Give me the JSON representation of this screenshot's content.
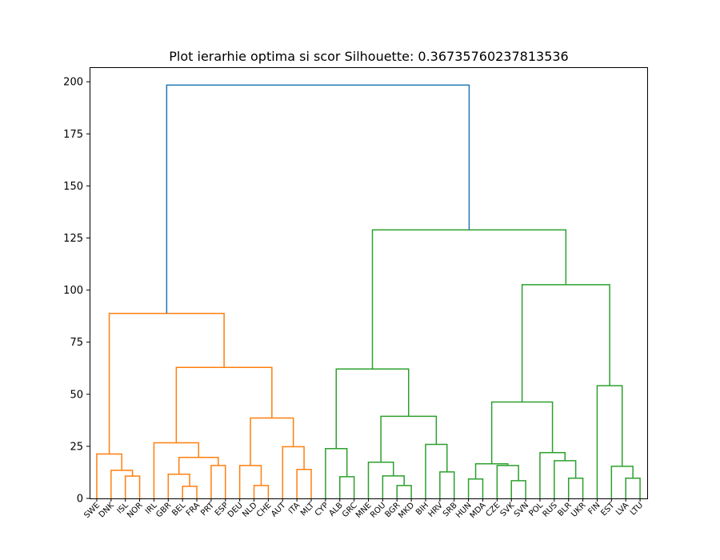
{
  "chart_data": {
    "type": "dendrogram",
    "title": "Plot ierarhie optima si scor Silhouette: 0.36735760237813536",
    "xlabel": "",
    "ylabel": "",
    "ylim": [
      0,
      207
    ],
    "yticks": [
      0,
      25,
      50,
      75,
      100,
      125,
      150,
      175,
      200
    ],
    "grid": false,
    "colors": {
      "cluster_1": "#ff7f0e",
      "cluster_2": "#2ca02c",
      "above_threshold": "#1f77b4"
    },
    "leaves": [
      "SWE",
      "DNK",
      "ISL",
      "NOR",
      "IRL",
      "GBR",
      "BEL",
      "FRA",
      "PRT",
      "ESP",
      "DEU",
      "NLD",
      "CHE",
      "AUT",
      "ITA",
      "MLT",
      "CYP",
      "ALB",
      "GRC",
      "MNE",
      "ROU",
      "BGR",
      "MKD",
      "BIH",
      "HRV",
      "SRB",
      "HUN",
      "MDA",
      "CZE",
      "SVK",
      "SVN",
      "POL",
      "RUS",
      "BLR",
      "UKR",
      "FIN",
      "EST",
      "LVA",
      "LTU"
    ],
    "merges": [
      {
        "id": "m01",
        "left": "ISL",
        "right": "NOR",
        "height": 10.7,
        "color": "cluster_1"
      },
      {
        "id": "m02",
        "left": "DNK",
        "right": "m01",
        "height": 13.5,
        "color": "cluster_1"
      },
      {
        "id": "m03",
        "left": "SWE",
        "right": "m02",
        "height": 21.3,
        "color": "cluster_1"
      },
      {
        "id": "m04",
        "left": "BEL",
        "right": "FRA",
        "height": 5.8,
        "color": "cluster_1"
      },
      {
        "id": "m05",
        "left": "GBR",
        "right": "m04",
        "height": 11.6,
        "color": "cluster_1"
      },
      {
        "id": "m06",
        "left": "PRT",
        "right": "ESP",
        "height": 15.8,
        "color": "cluster_1"
      },
      {
        "id": "m07",
        "left": "m05",
        "right": "m06",
        "height": 19.7,
        "color": "cluster_1"
      },
      {
        "id": "m08",
        "left": "IRL",
        "right": "m07",
        "height": 26.7,
        "color": "cluster_1"
      },
      {
        "id": "m09",
        "left": "NLD",
        "right": "CHE",
        "height": 6.2,
        "color": "cluster_1"
      },
      {
        "id": "m10",
        "left": "DEU",
        "right": "m09",
        "height": 15.8,
        "color": "cluster_1"
      },
      {
        "id": "m11",
        "left": "ITA",
        "right": "MLT",
        "height": 13.9,
        "color": "cluster_1"
      },
      {
        "id": "m12",
        "left": "AUT",
        "right": "m11",
        "height": 24.8,
        "color": "cluster_1"
      },
      {
        "id": "m13",
        "left": "m10",
        "right": "m12",
        "height": 38.6,
        "color": "cluster_1"
      },
      {
        "id": "m14",
        "left": "m08",
        "right": "m13",
        "height": 62.9,
        "color": "cluster_1"
      },
      {
        "id": "m15",
        "left": "m03",
        "right": "m14",
        "height": 88.8,
        "color": "cluster_1"
      },
      {
        "id": "m16",
        "left": "ALB",
        "right": "GRC",
        "height": 10.4,
        "color": "cluster_2"
      },
      {
        "id": "m17",
        "left": "CYP",
        "right": "m16",
        "height": 23.9,
        "color": "cluster_2"
      },
      {
        "id": "m18",
        "left": "BGR",
        "right": "MKD",
        "height": 6.2,
        "color": "cluster_2"
      },
      {
        "id": "m19",
        "left": "ROU",
        "right": "m18",
        "height": 10.8,
        "color": "cluster_2"
      },
      {
        "id": "m20",
        "left": "MNE",
        "right": "m19",
        "height": 17.4,
        "color": "cluster_2"
      },
      {
        "id": "m21",
        "left": "HRV",
        "right": "SRB",
        "height": 12.7,
        "color": "cluster_2"
      },
      {
        "id": "m22",
        "left": "BIH",
        "right": "m21",
        "height": 25.9,
        "color": "cluster_2"
      },
      {
        "id": "m23",
        "left": "m20",
        "right": "m22",
        "height": 39.4,
        "color": "cluster_2"
      },
      {
        "id": "m24",
        "left": "m17",
        "right": "m23",
        "height": 62.1,
        "color": "cluster_2"
      },
      {
        "id": "m25",
        "left": "HUN",
        "right": "MDA",
        "height": 9.3,
        "color": "cluster_2"
      },
      {
        "id": "m26",
        "left": "SVK",
        "right": "SVN",
        "height": 8.5,
        "color": "cluster_2"
      },
      {
        "id": "m27",
        "left": "CZE",
        "right": "m26",
        "height": 15.8,
        "color": "cluster_2"
      },
      {
        "id": "m28",
        "left": "m25",
        "right": "m27",
        "height": 16.6,
        "color": "cluster_2"
      },
      {
        "id": "m29",
        "left": "BLR",
        "right": "UKR",
        "height": 9.7,
        "color": "cluster_2"
      },
      {
        "id": "m30",
        "left": "RUS",
        "right": "m29",
        "height": 18.1,
        "color": "cluster_2"
      },
      {
        "id": "m31",
        "left": "POL",
        "right": "m30",
        "height": 22.0,
        "color": "cluster_2"
      },
      {
        "id": "m32",
        "left": "m28",
        "right": "m31",
        "height": 46.3,
        "color": "cluster_2"
      },
      {
        "id": "m33",
        "left": "LVA",
        "right": "LTU",
        "height": 9.7,
        "color": "cluster_2"
      },
      {
        "id": "m34",
        "left": "EST",
        "right": "m33",
        "height": 15.4,
        "color": "cluster_2"
      },
      {
        "id": "m35",
        "left": "FIN",
        "right": "m34",
        "height": 54.1,
        "color": "cluster_2"
      },
      {
        "id": "m36",
        "left": "m32",
        "right": "m35",
        "height": 102.6,
        "color": "cluster_2"
      },
      {
        "id": "m37",
        "left": "m24",
        "right": "m36",
        "height": 128.9,
        "color": "cluster_2"
      },
      {
        "id": "m38",
        "left": "m15",
        "right": "m37",
        "height": 198.4,
        "color": "above_threshold"
      }
    ]
  }
}
